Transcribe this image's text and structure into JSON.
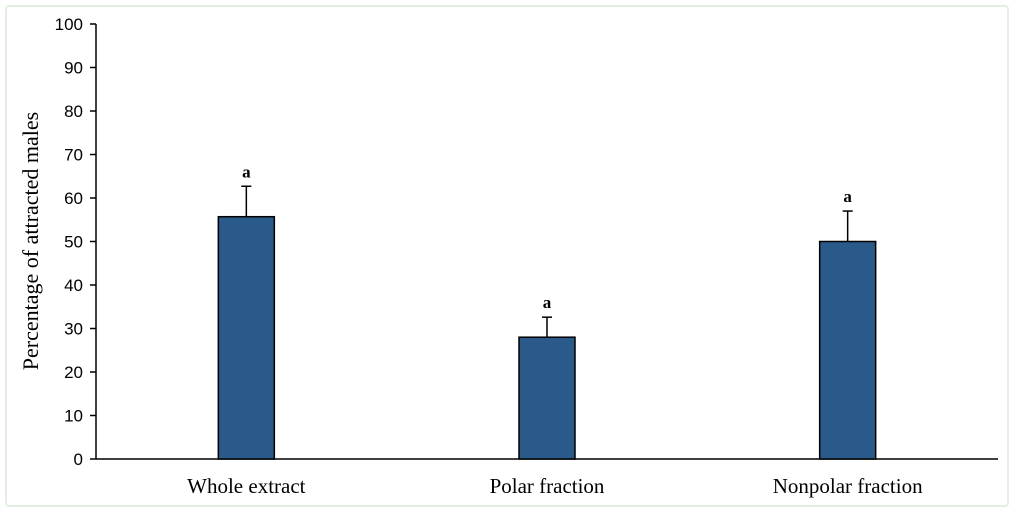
{
  "chart_data": {
    "type": "bar",
    "title": "",
    "xlabel": "",
    "ylabel": "Percentage of attracted males",
    "categories": [
      "Whole extract",
      "Polar fraction",
      "Nonpolar fraction"
    ],
    "values": [
      55.7,
      28.0,
      50.0
    ],
    "error_bars": [
      7.0,
      4.6,
      7.0
    ],
    "significance_labels": [
      "a",
      "a",
      "a"
    ],
    "ylim": [
      0,
      100
    ],
    "yticks": [
      "0",
      "10",
      "20",
      "30",
      "40",
      "50",
      "60",
      "70",
      "80",
      "90",
      "100"
    ],
    "grid": false,
    "legend": "none",
    "bar_color": "#2a5a8a",
    "bar_edge_color": "#000000",
    "frame_color": "#e3efe2"
  }
}
